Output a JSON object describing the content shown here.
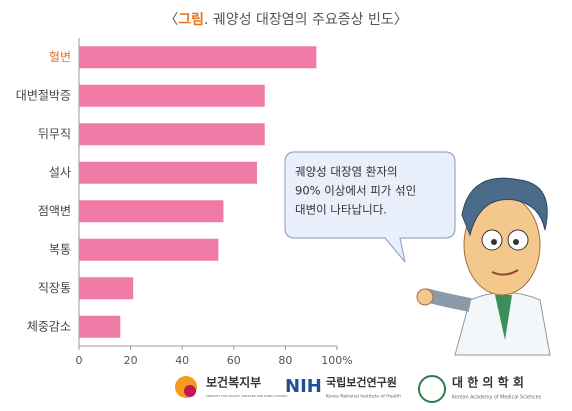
{
  "chart_data": {
    "type": "barh",
    "title_parts": [
      "〈",
      "그림",
      ". 궤양성 대장염의 주요증상 빈도〉"
    ],
    "title_colors": [
      "#555555",
      "#e8731e",
      "#555555"
    ],
    "categories": [
      "혈변",
      "대변절박증",
      "뒤무직",
      "설사",
      "점액변",
      "복통",
      "직장통",
      "체중감소"
    ],
    "category_colors": [
      "#e8731e",
      "#444444",
      "#444444",
      "#444444",
      "#444444",
      "#444444",
      "#444444",
      "#444444"
    ],
    "values": [
      92,
      72,
      72,
      69,
      56,
      54,
      21,
      16
    ],
    "color": "#ef7ba6",
    "xlim": [
      0,
      100
    ],
    "xticks": [
      0,
      20,
      40,
      60,
      80,
      {
        "value": 100,
        "label": "100%"
      }
    ],
    "grid": false,
    "bubble": [
      "궤양성 대장염 환자의",
      "90% 이상에서 피가 섞인",
      "대변이 나타납니다."
    ],
    "logos": [
      {
        "name": "보건복지부",
        "sub": "MINISTRY FOR HEALTH, WELFARE AND FAMILY AFFAIRS"
      },
      {
        "name": "국립보건연구원",
        "mark": "NIH",
        "sub": "Korea National Institute of Health"
      },
      {
        "name": "대 한 의 학 회",
        "sub": "Korean Academy of Medical Sciences"
      }
    ]
  }
}
